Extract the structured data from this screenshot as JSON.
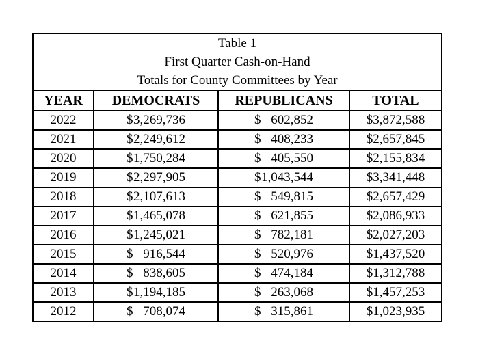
{
  "table": {
    "title_lines": [
      "Table 1",
      "First Quarter Cash-on-Hand",
      "Totals for County Committees by Year"
    ],
    "columns": [
      "YEAR",
      "DEMOCRATS",
      "REPUBLICANS",
      "TOTAL"
    ],
    "currency_symbol": "$",
    "rows": [
      {
        "year": "2022",
        "democrats": "3,269,736",
        "republicans": "602,852",
        "total": "3,872,588"
      },
      {
        "year": "2021",
        "democrats": "2,249,612",
        "republicans": "408,233",
        "total": "2,657,845"
      },
      {
        "year": "2020",
        "democrats": "1,750,284",
        "republicans": "405,550",
        "total": "2,155,834"
      },
      {
        "year": "2019",
        "democrats": "2,297,905",
        "republicans": "1,043,544",
        "total": "3,341,448"
      },
      {
        "year": "2018",
        "democrats": "2,107,613",
        "republicans": "549,815",
        "total": "2,657,429"
      },
      {
        "year": "2017",
        "democrats": "1,465,078",
        "republicans": "621,855",
        "total": "2,086,933"
      },
      {
        "year": "2016",
        "democrats": "1,245,021",
        "republicans": "782,181",
        "total": "2,027,203"
      },
      {
        "year": "2015",
        "democrats": "916,544",
        "republicans": "520,976",
        "total": "1,437,520"
      },
      {
        "year": "2014",
        "democrats": "838,605",
        "republicans": "474,184",
        "total": "1,312,788"
      },
      {
        "year": "2013",
        "democrats": "1,194,185",
        "republicans": "263,068",
        "total": "1,457,253"
      },
      {
        "year": "2012",
        "democrats": "708,074",
        "republicans": "315,861",
        "total": "1,023,935"
      }
    ]
  },
  "colors": {
    "background": "#ffffff",
    "text": "#000000",
    "border": "#000000"
  }
}
